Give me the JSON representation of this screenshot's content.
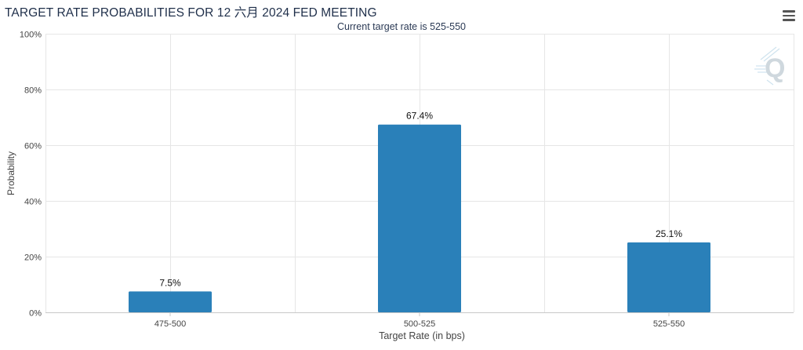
{
  "title": "TARGET RATE PROBABILITIES FOR 12 六月 2024 FED MEETING",
  "subtitle": "Current target rate is 525-550",
  "menu_icon": "hamburger-menu-icon",
  "watermark_icon": "q-logo-icon",
  "colors": {
    "bar": "#2a80b9",
    "grid": "#e6e6e6",
    "axis": "#c8c8c8",
    "text": "#333333"
  },
  "chart_data": {
    "type": "bar",
    "title": "TARGET RATE PROBABILITIES FOR 12 六月 2024 FED MEETING",
    "subtitle": "Current target rate is 525-550",
    "categories": [
      "475-500",
      "500-525",
      "525-550"
    ],
    "values": [
      7.5,
      67.4,
      25.1
    ],
    "data_labels": [
      "7.5%",
      "67.4%",
      "25.1%"
    ],
    "xlabel": "Target Rate (in bps)",
    "ylabel": "Probability",
    "ylim": [
      0,
      100
    ],
    "yticks": [
      0,
      20,
      40,
      60,
      80,
      100
    ],
    "ytick_labels": [
      "0%",
      "20%",
      "40%",
      "60%",
      "80%",
      "100%"
    ],
    "grid": true,
    "legend": "none"
  }
}
